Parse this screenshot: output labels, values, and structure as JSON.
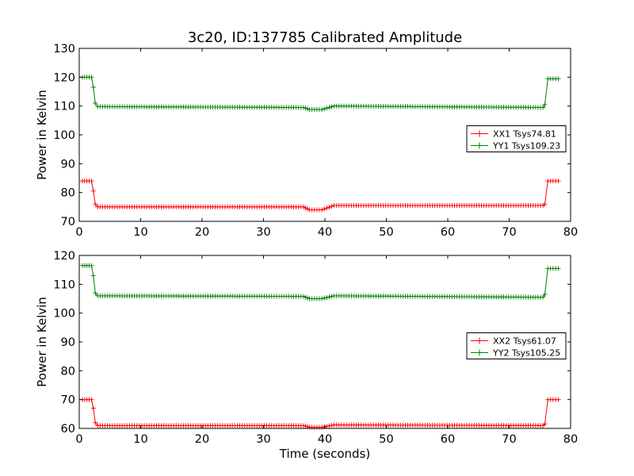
{
  "chart_data": [
    {
      "type": "line",
      "title": "3c20, ID:137785 Calibrated Amplitude",
      "xlabel": "",
      "ylabel": "Power in Kelvin",
      "xlim": [
        0,
        80
      ],
      "ylim": [
        70,
        130
      ],
      "xticks": [
        0,
        10,
        20,
        30,
        40,
        50,
        60,
        70,
        80
      ],
      "yticks": [
        70,
        80,
        90,
        100,
        110,
        120,
        130
      ],
      "legend_position": "center-right",
      "marker": "plus",
      "series": [
        {
          "name": "XX1 Tsys74.81",
          "color": "#ff0000",
          "points": [
            [
              0.5,
              84
            ],
            [
              2,
              84
            ],
            [
              2.3,
              80.5
            ],
            [
              2.6,
              76
            ],
            [
              3,
              75
            ],
            [
              36.5,
              75
            ],
            [
              37.5,
              74
            ],
            [
              39.5,
              74
            ],
            [
              41.5,
              75.5
            ],
            [
              75.5,
              75.5
            ],
            [
              75.8,
              76
            ],
            [
              76.3,
              84
            ],
            [
              78,
              84
            ]
          ]
        },
        {
          "name": "YY1 Tsys109.23",
          "color": "#008000",
          "points": [
            [
              0.5,
              120
            ],
            [
              2,
              120
            ],
            [
              2.3,
              116.5
            ],
            [
              2.6,
              111
            ],
            [
              3,
              109.8
            ],
            [
              36.5,
              109.5
            ],
            [
              37.5,
              108.8
            ],
            [
              39.5,
              108.8
            ],
            [
              41.5,
              110
            ],
            [
              75.5,
              109.5
            ],
            [
              75.8,
              110.5
            ],
            [
              76.3,
              119.5
            ],
            [
              78,
              119.5
            ]
          ]
        }
      ]
    },
    {
      "type": "line",
      "title": "",
      "xlabel": "Time (seconds)",
      "ylabel": "Power in Kelvin",
      "xlim": [
        0,
        80
      ],
      "ylim": [
        60,
        120
      ],
      "xticks": [
        0,
        10,
        20,
        30,
        40,
        50,
        60,
        70,
        80
      ],
      "yticks": [
        60,
        70,
        80,
        90,
        100,
        110,
        120
      ],
      "legend_position": "center-right",
      "marker": "plus",
      "series": [
        {
          "name": "XX2 Tsys61.07",
          "color": "#ff0000",
          "points": [
            [
              0.5,
              70
            ],
            [
              2,
              70
            ],
            [
              2.3,
              67
            ],
            [
              2.6,
              62
            ],
            [
              3,
              61
            ],
            [
              36.5,
              61
            ],
            [
              37.5,
              60.4
            ],
            [
              39.5,
              60.4
            ],
            [
              41.5,
              61.2
            ],
            [
              75.5,
              61
            ],
            [
              75.8,
              61.5
            ],
            [
              76.3,
              70
            ],
            [
              78,
              70
            ]
          ]
        },
        {
          "name": "YY2 Tsys105.25",
          "color": "#008000",
          "points": [
            [
              0.5,
              116.5
            ],
            [
              2,
              116.5
            ],
            [
              2.3,
              113
            ],
            [
              2.6,
              107
            ],
            [
              3,
              106
            ],
            [
              36.5,
              105.8
            ],
            [
              37.5,
              105
            ],
            [
              39.5,
              105
            ],
            [
              41.5,
              106
            ],
            [
              75.5,
              105.5
            ],
            [
              75.8,
              106.5
            ],
            [
              76.3,
              115.5
            ],
            [
              78,
              115.5
            ]
          ]
        }
      ]
    }
  ]
}
